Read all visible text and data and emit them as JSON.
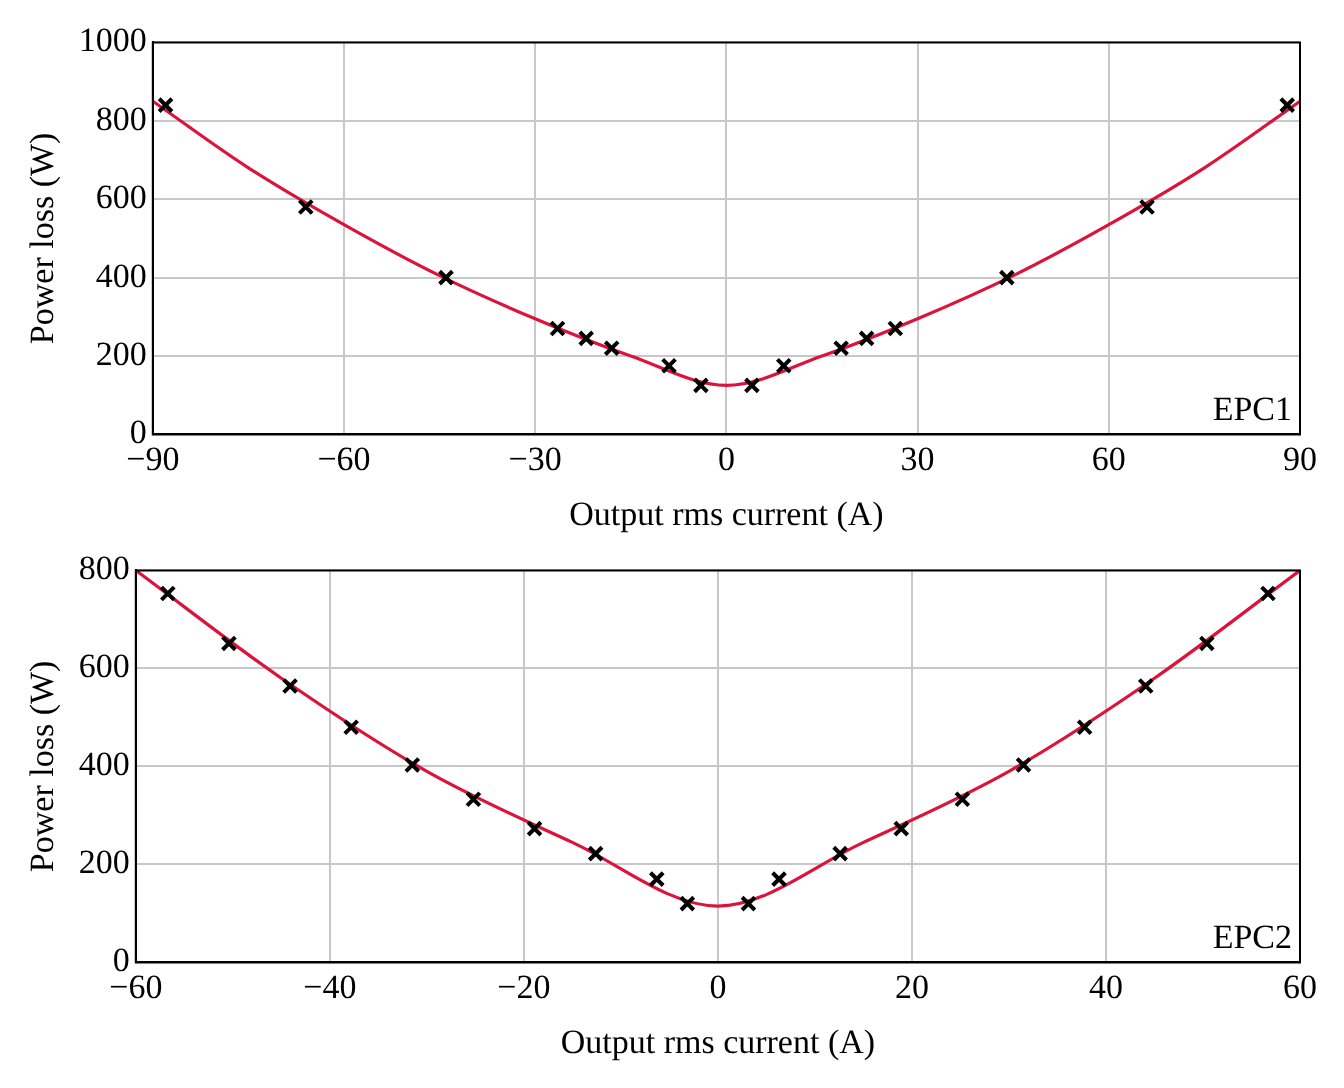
{
  "chart_data": [
    {
      "type": "scatter",
      "xlabel": "Output rms current (A)",
      "ylabel": "Power loss (W)",
      "xlim": [
        -90,
        90
      ],
      "xticks": [
        {
          "value": -90,
          "label": "−90"
        },
        {
          "value": -60,
          "label": "−60"
        },
        {
          "value": -30,
          "label": "−30"
        },
        0,
        30,
        60,
        90
      ],
      "ylim": [
        0,
        1000
      ],
      "yticks": [
        0,
        200,
        400,
        600,
        800,
        1000
      ],
      "grid": true,
      "marker": "cross",
      "annotations": [
        "EPC1"
      ],
      "series": [
        {
          "type": "scatter",
          "color": "#000000",
          "x": [
            -88,
            -66,
            -44,
            -26.5,
            -22,
            -18,
            -9,
            -4,
            4,
            9,
            18,
            22,
            26.5,
            44,
            66,
            88
          ],
          "values": [
            840,
            580,
            400,
            270,
            245,
            220,
            175,
            125,
            125,
            175,
            220,
            245,
            270,
            400,
            580,
            840
          ]
        },
        {
          "type": "line",
          "color": "#dc143c",
          "marker": "none",
          "x": [
            -90,
            -75,
            -60,
            -45,
            -30,
            -15,
            0,
            15,
            30,
            45,
            60,
            75,
            90
          ],
          "values": [
            850,
            680,
            535,
            405,
            295,
            200,
            125,
            200,
            295,
            405,
            535,
            680,
            850
          ]
        }
      ]
    },
    {
      "type": "scatter",
      "xlabel": "Output rms current (A)",
      "ylabel": "Power loss (W)",
      "xlim": [
        -60,
        60
      ],
      "xticks": [
        {
          "value": -60,
          "label": "−60"
        },
        {
          "value": -40,
          "label": "−40"
        },
        {
          "value": -20,
          "label": "−20"
        },
        0,
        20,
        40,
        60
      ],
      "ylim": [
        0,
        800
      ],
      "yticks": [
        0,
        200,
        400,
        600,
        800
      ],
      "grid": true,
      "marker": "cross",
      "annotations": [
        "EPC2"
      ],
      "series": [
        {
          "type": "scatter",
          "color": "#000000",
          "x": [
            -56.7,
            -50.4,
            -44.1,
            -37.8,
            -31.5,
            -25.2,
            -18.9,
            -12.6,
            -6.3,
            -3.15,
            3.15,
            6.3,
            12.6,
            18.9,
            25.2,
            31.5,
            37.8,
            44.1,
            50.4,
            56.7
          ],
          "values": [
            753,
            651,
            564,
            480,
            403,
            333,
            273,
            222,
            170,
            120,
            120,
            170,
            222,
            273,
            333,
            403,
            480,
            564,
            651,
            753
          ]
        },
        {
          "type": "line",
          "color": "#dc143c",
          "marker": "none",
          "x": [
            -60,
            -45,
            -30,
            -15,
            0,
            15,
            30,
            45,
            60
          ],
          "values": [
            800,
            580,
            390,
            245,
            115,
            245,
            390,
            580,
            800
          ]
        }
      ]
    }
  ]
}
